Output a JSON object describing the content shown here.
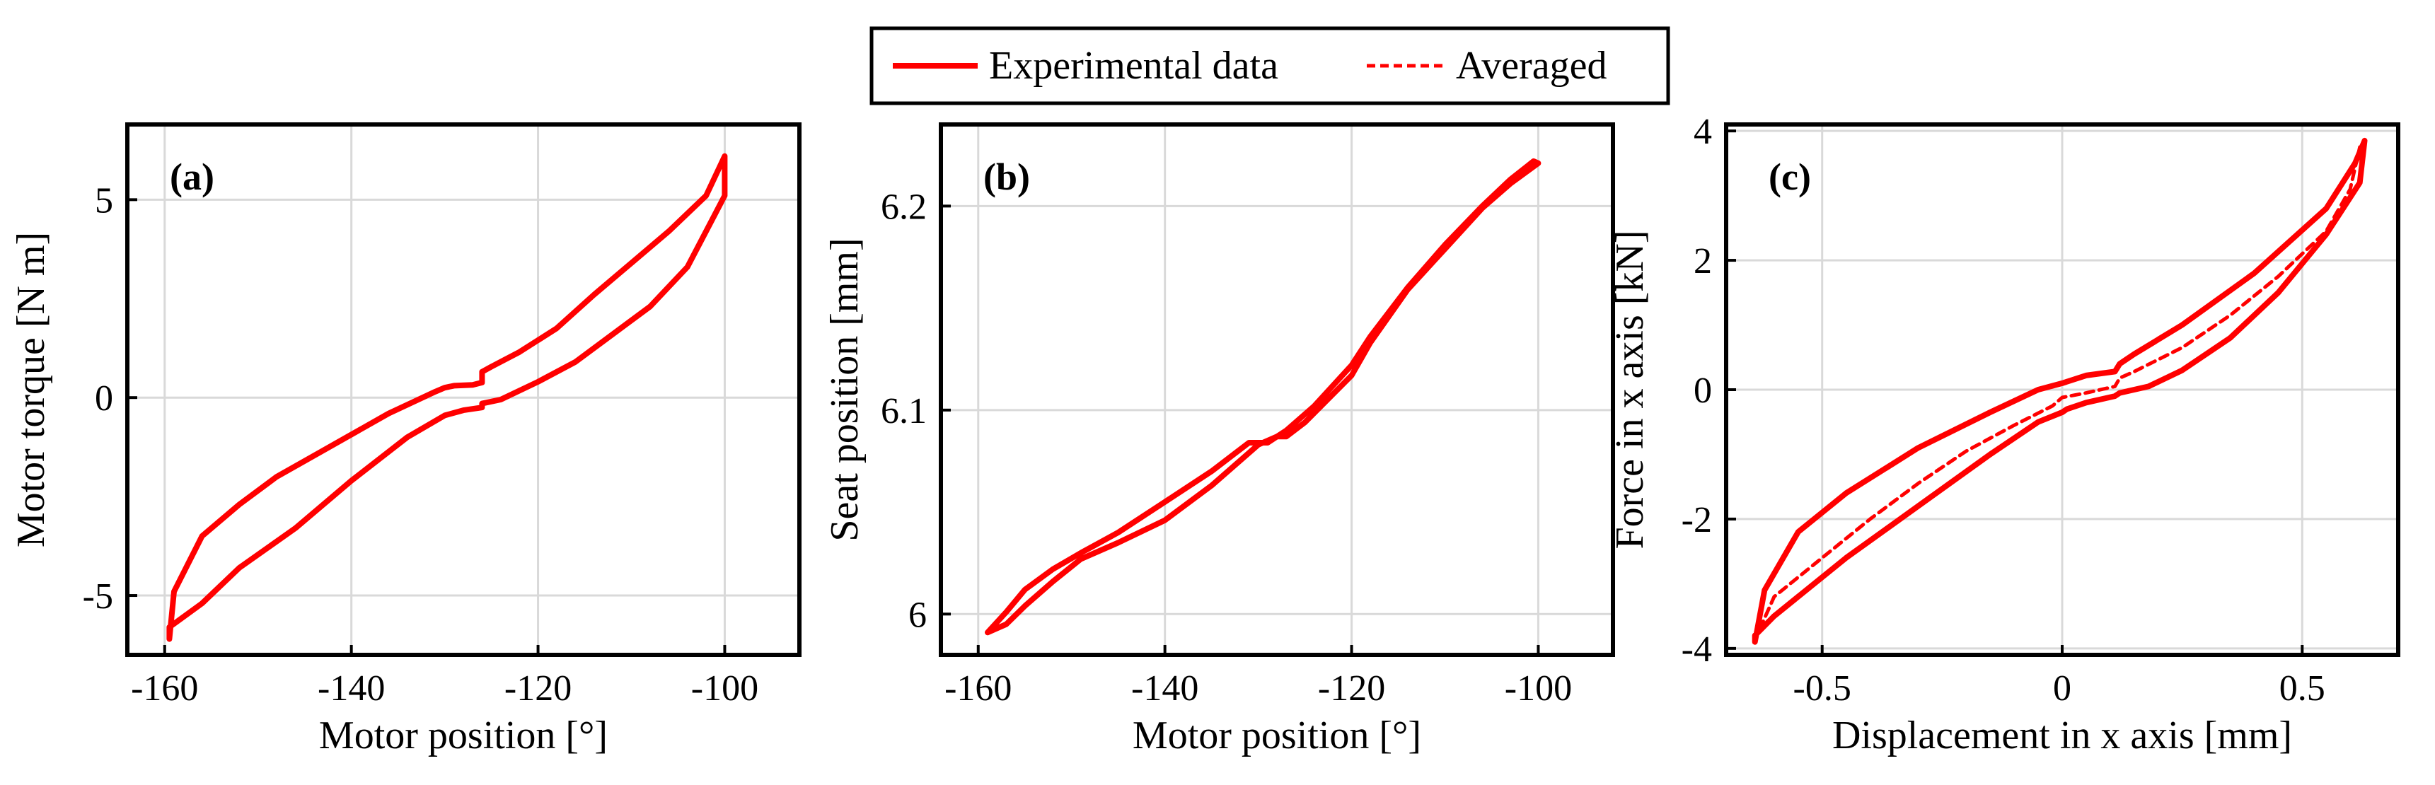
{
  "legend": {
    "items": [
      {
        "label": "Experimental data",
        "style": "solid"
      },
      {
        "label": "Averaged",
        "style": "dashed"
      }
    ]
  },
  "colors": {
    "series": "#ff0000",
    "grid": "#d9d9d9",
    "axis": "#000000"
  },
  "chart_data": [
    {
      "type": "line",
      "panel": "(a)",
      "xlabel": "Motor position [°]",
      "ylabel": "Motor torque [N m]",
      "xlim": [
        -164,
        -92
      ],
      "ylim": [
        -6.5,
        6.9
      ],
      "xticks": [
        -160,
        -140,
        -120,
        -100
      ],
      "yticks": [
        -5,
        0,
        5
      ],
      "xtick_labels": [
        "-160",
        "-140",
        "-120",
        "-100"
      ],
      "ytick_labels": [
        "-5",
        "0",
        "5"
      ],
      "series": [
        {
          "name": "Experimental data",
          "style": "solid",
          "x": [
            -100,
            -100,
            -104,
            -108,
            -112,
            -116,
            -120,
            -124,
            -126,
            -126,
            -128,
            -130,
            -134,
            -140,
            -146,
            -152,
            -156,
            -159.5,
            -159.5,
            -159,
            -156,
            -152,
            -148,
            -142,
            -136,
            -131,
            -130,
            -129,
            -127,
            -126,
            -126,
            -125,
            -122,
            -118,
            -114,
            -110,
            -106,
            -102,
            -100
          ],
          "y": [
            6.1,
            5.1,
            3.3,
            2.3,
            1.6,
            0.9,
            0.4,
            -0.05,
            -0.15,
            -0.25,
            -0.32,
            -0.45,
            -1.0,
            -2.1,
            -3.3,
            -4.3,
            -5.2,
            -5.8,
            -6.1,
            -4.9,
            -3.5,
            -2.7,
            -2.0,
            -1.2,
            -0.4,
            0.15,
            0.25,
            0.3,
            0.32,
            0.38,
            0.65,
            0.78,
            1.15,
            1.75,
            2.6,
            3.4,
            4.2,
            5.1,
            6.1
          ]
        }
      ]
    },
    {
      "type": "line",
      "panel": "(b)",
      "xlabel": "Motor position [°]",
      "ylabel": "Seat position [mm]",
      "xlim": [
        -164,
        -92
      ],
      "ylim": [
        5.98,
        6.24
      ],
      "xticks": [
        -160,
        -140,
        -120,
        -100
      ],
      "yticks": [
        6.0,
        6.1,
        6.2
      ],
      "xtick_labels": [
        "-160",
        "-140",
        "-120",
        "-100"
      ],
      "ytick_labels": [
        "6",
        "6.1",
        "6.2"
      ],
      "series": [
        {
          "name": "Experimental data",
          "style": "solid",
          "x": [
            -159,
            -157,
            -155,
            -152,
            -149,
            -145,
            -140,
            -135,
            -130,
            -128,
            -127,
            -125,
            -120,
            -118,
            -114,
            -110,
            -106,
            -103,
            -100,
            -100.5,
            -103,
            -106,
            -110,
            -114,
            -118,
            -120,
            -124,
            -127,
            -129,
            -131,
            -135,
            -140,
            -145,
            -149,
            -152,
            -155,
            -157,
            -159
          ],
          "y": [
            5.991,
            5.995,
            6.004,
            6.016,
            6.027,
            6.035,
            6.046,
            6.063,
            6.083,
            6.087,
            6.087,
            6.094,
            6.117,
            6.133,
            6.159,
            6.179,
            6.199,
            6.211,
            6.221,
            6.222,
            6.213,
            6.2,
            6.181,
            6.16,
            6.136,
            6.122,
            6.102,
            6.09,
            6.084,
            6.084,
            6.07,
            6.055,
            6.04,
            6.03,
            6.022,
            6.012,
            6.001,
            5.991
          ]
        }
      ]
    },
    {
      "type": "line",
      "panel": "(c)",
      "xlabel": "Displacement in x axis [mm]",
      "ylabel": "Force in x axis [kN]",
      "xlim": [
        -0.7,
        0.7
      ],
      "ylim": [
        -4.1,
        4.1
      ],
      "xticks": [
        -0.5,
        0,
        0.5
      ],
      "yticks": [
        -4,
        -2,
        0,
        2,
        4
      ],
      "xtick_labels": [
        "-0.5",
        "0",
        "0.5"
      ],
      "ytick_labels": [
        "-4",
        "-2",
        "0",
        "2",
        "4"
      ],
      "series": [
        {
          "name": "Experimental data",
          "style": "solid",
          "x": [
            0.63,
            0.62,
            0.55,
            0.45,
            0.35,
            0.25,
            0.18,
            0.12,
            0.11,
            0.05,
            0.01,
            0.0,
            -0.05,
            -0.15,
            -0.3,
            -0.45,
            -0.6,
            -0.64,
            -0.64,
            -0.62,
            -0.55,
            -0.45,
            -0.3,
            -0.15,
            -0.05,
            0.0,
            0.05,
            0.11,
            0.12,
            0.15,
            0.25,
            0.4,
            0.55,
            0.61,
            0.63
          ],
          "y": [
            3.85,
            3.2,
            2.4,
            1.5,
            0.8,
            0.3,
            0.05,
            -0.05,
            -0.1,
            -0.2,
            -0.3,
            -0.35,
            -0.5,
            -1.0,
            -1.8,
            -2.6,
            -3.5,
            -3.8,
            -3.9,
            -3.1,
            -2.2,
            -1.6,
            -0.9,
            -0.35,
            0.0,
            0.1,
            0.22,
            0.28,
            0.4,
            0.55,
            1.0,
            1.8,
            2.8,
            3.5,
            3.85
          ]
        },
        {
          "name": "Averaged",
          "style": "dashed",
          "x": [
            -0.63,
            -0.6,
            -0.5,
            -0.4,
            -0.3,
            -0.2,
            -0.1,
            -0.02,
            0.0,
            0.05,
            0.11,
            0.12,
            0.15,
            0.25,
            0.35,
            0.45,
            0.55,
            0.6,
            0.62
          ],
          "y": [
            -3.7,
            -3.2,
            -2.6,
            -2.0,
            -1.45,
            -0.95,
            -0.55,
            -0.25,
            -0.12,
            -0.05,
            0.05,
            0.18,
            0.28,
            0.65,
            1.15,
            1.75,
            2.45,
            3.1,
            3.75
          ]
        }
      ]
    }
  ]
}
